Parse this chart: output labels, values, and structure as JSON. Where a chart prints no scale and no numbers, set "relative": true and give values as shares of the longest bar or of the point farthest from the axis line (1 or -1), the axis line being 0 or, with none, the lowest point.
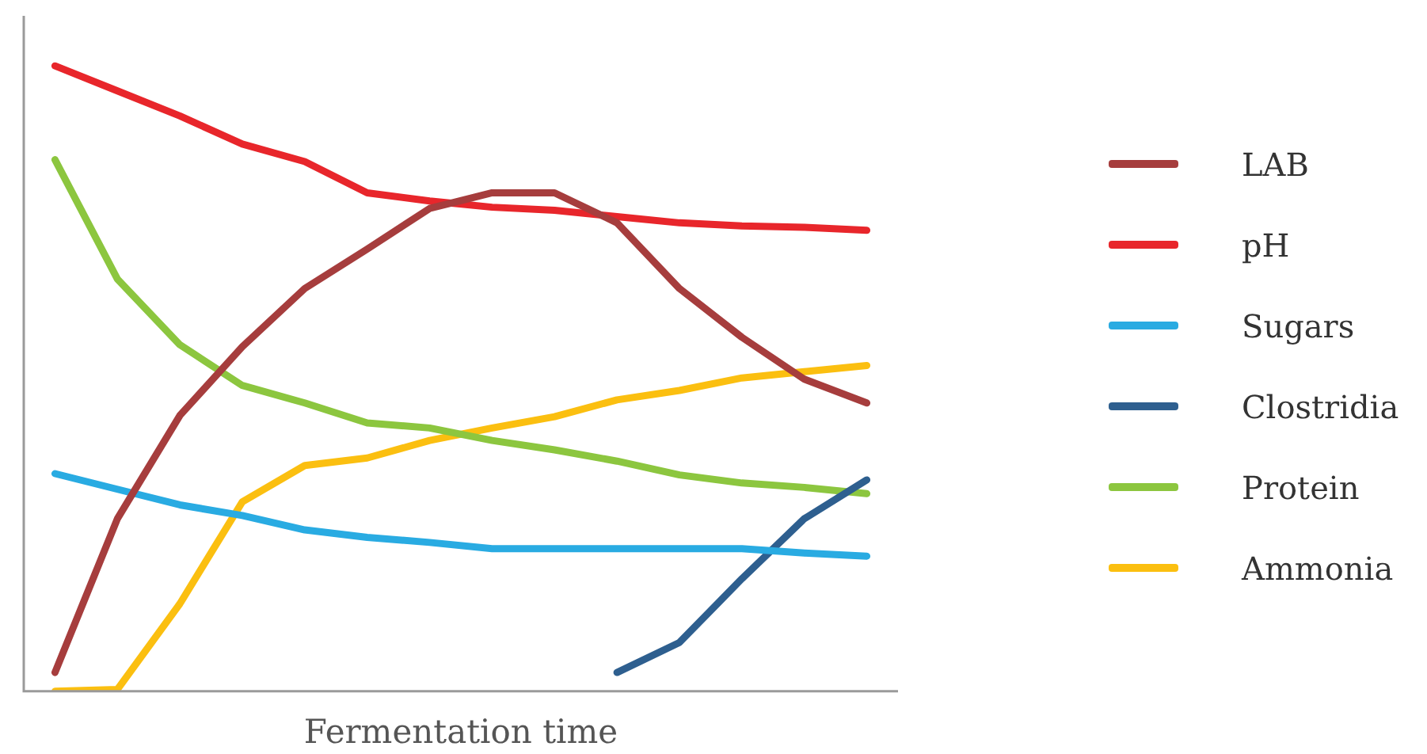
{
  "chart_data": {
    "type": "line",
    "relative": true,
    "xlabel": "Fermentation time",
    "legend": "right",
    "grid": false,
    "marker": "none",
    "line_style": "solid",
    "categories": [
      null,
      null,
      null,
      null,
      null,
      null,
      null,
      null,
      null,
      null,
      null,
      null,
      null,
      null
    ],
    "series": [
      {
        "name": "LAB",
        "color": "#a63d3d",
        "values": [
          0.03,
          0.276,
          0.441,
          0.551,
          0.644,
          0.707,
          0.772,
          0.797,
          0.797,
          0.749,
          0.644,
          0.566,
          0.499,
          0.461
        ]
      },
      {
        "name": "pH",
        "color": "#e8262b",
        "values": [
          1,
          0.96,
          0.92,
          0.875,
          0.847,
          0.797,
          0.784,
          0.774,
          0.769,
          0.759,
          0.749,
          0.744,
          0.742,
          0.737
        ]
      },
      {
        "name": "Sugars",
        "color": "#29abe2",
        "values": [
          0.348,
          0.323,
          0.298,
          0.281,
          0.258,
          0.246,
          0.238,
          0.228,
          0.228,
          0.228,
          0.228,
          0.228,
          0.221,
          0.216
        ]
      },
      {
        "name": "Clostridia",
        "color": "#2e5f8f",
        "values": [
          null,
          null,
          null,
          null,
          null,
          null,
          null,
          null,
          null,
          0.03,
          0.078,
          0.18,
          0.276,
          0.338
        ]
      },
      {
        "name": "Protein",
        "color": "#8cc63f",
        "values": [
          0.85,
          0.659,
          0.554,
          0.489,
          0.461,
          0.429,
          0.421,
          0.401,
          0.386,
          0.368,
          0.346,
          0.333,
          0.326,
          0.316
        ]
      },
      {
        "name": "Ammonia",
        "color": "#fbbf10",
        "values": [
          0,
          0.003,
          0.14,
          0.303,
          0.361,
          0.373,
          0.401,
          0.421,
          0.439,
          0.466,
          0.481,
          0.501,
          0.511,
          0.521
        ]
      }
    ]
  }
}
